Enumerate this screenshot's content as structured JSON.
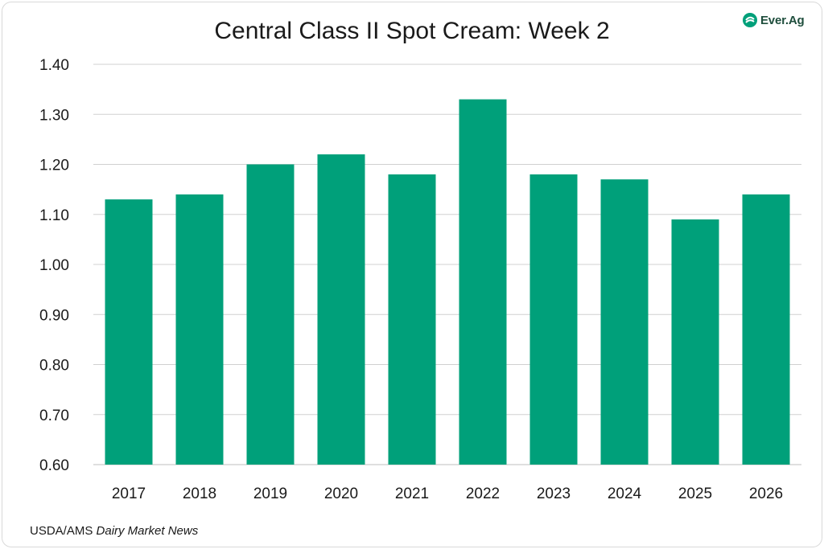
{
  "header": {
    "title": "Central Class II Spot Cream: Week 2",
    "logo_text": "Ever.Ag"
  },
  "footer": {
    "source_prefix": "USDA/AMS ",
    "source_publication": "Dairy Market News"
  },
  "colors": {
    "bar": "#00a07a",
    "gridline": "#d0d0d0",
    "logo_mark": "#00a07a"
  },
  "chart_data": {
    "type": "bar",
    "title": "Central Class II Spot Cream: Week 2",
    "xlabel": "",
    "ylabel": "",
    "categories": [
      "2017",
      "2018",
      "2019",
      "2020",
      "2021",
      "2022",
      "2023",
      "2024",
      "2025",
      "2026"
    ],
    "values": [
      1.13,
      1.14,
      1.2,
      1.22,
      1.18,
      1.33,
      1.18,
      1.17,
      1.09,
      1.14
    ],
    "ylim": [
      0.6,
      1.4
    ],
    "yticks": [
      0.6,
      0.7,
      0.8,
      0.9,
      1.0,
      1.1,
      1.2,
      1.3,
      1.4
    ],
    "ytick_labels": [
      "0.60",
      "0.70",
      "0.80",
      "0.90",
      "1.00",
      "1.10",
      "1.20",
      "1.30",
      "1.40"
    ],
    "grid": true,
    "legend": "none"
  }
}
